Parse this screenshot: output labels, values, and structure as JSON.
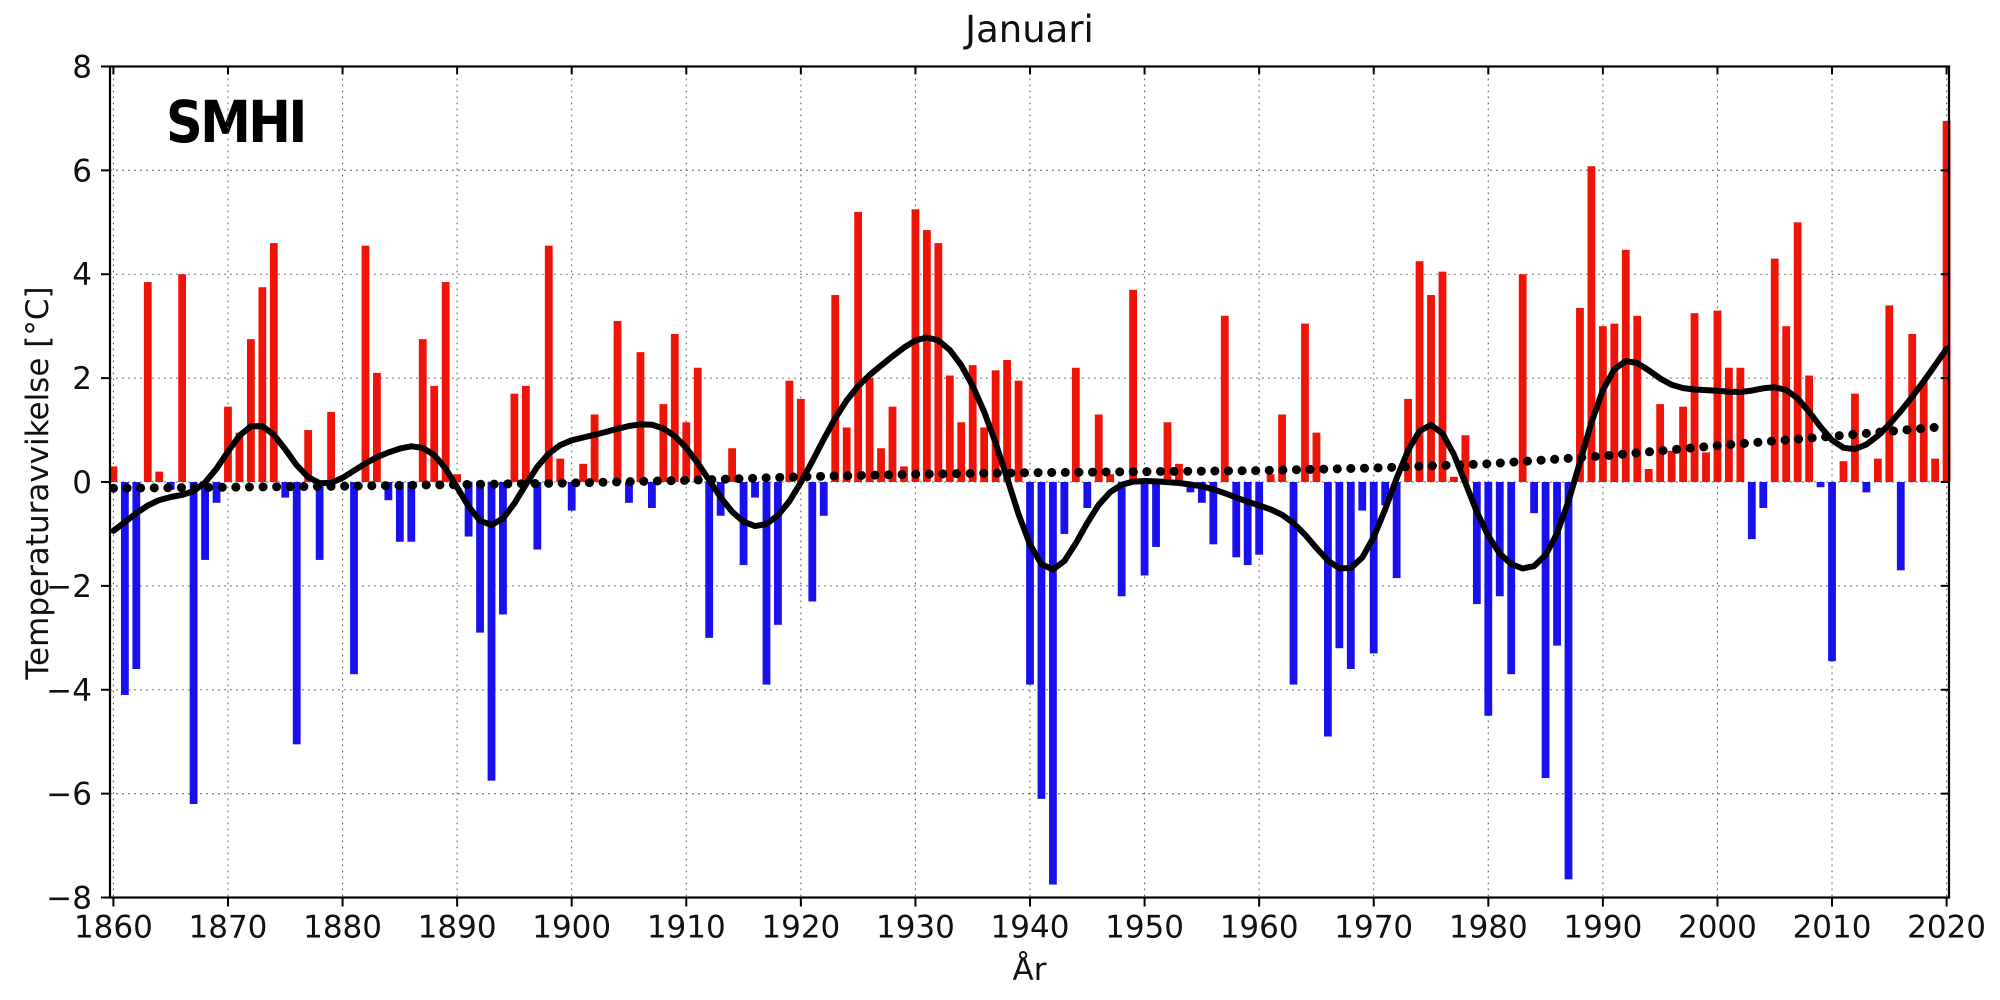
{
  "chart_data": {
    "type": "bar",
    "title": "Januari",
    "xlabel": "År",
    "ylabel": "Temperaturavvikelse [°C]",
    "logo_text": "SMHI",
    "ylim": [
      -8,
      8
    ],
    "ytick_step": 2,
    "xtick_step": 10,
    "grid": true,
    "legend_position": "none",
    "x_start": 1860,
    "x_end": 2020,
    "bar_color_positive": "#ee1508",
    "bar_color_negative": "#1a10ee",
    "ytick_labels": [
      "8",
      "6",
      "4",
      "2",
      "0",
      "−2",
      "−4",
      "−6",
      "−8"
    ],
    "xtick_labels": [
      "1860",
      "1870",
      "1880",
      "1890",
      "1900",
      "1910",
      "1920",
      "1930",
      "1940",
      "1950",
      "1960",
      "1970",
      "1980",
      "1990",
      "2000",
      "2010",
      "2020"
    ],
    "bar_values": [
      0.3,
      -4.1,
      -3.6,
      3.85,
      0.2,
      -0.15,
      4.0,
      -6.2,
      -1.5,
      -0.4,
      1.45,
      0.95,
      2.75,
      3.75,
      4.6,
      -0.3,
      -5.05,
      1.0,
      -1.5,
      1.35,
      0.0,
      -3.7,
      4.55,
      2.1,
      -0.35,
      -1.15,
      -1.15,
      2.75,
      1.85,
      3.85,
      0.15,
      -1.05,
      -2.9,
      -5.75,
      -2.55,
      1.7,
      1.85,
      -1.3,
      4.55,
      0.45,
      -0.55,
      0.35,
      1.3,
      0.0,
      3.1,
      -0.4,
      2.5,
      -0.5,
      1.5,
      2.85,
      1.15,
      2.2,
      -3.0,
      -0.65,
      0.65,
      -1.6,
      -0.3,
      -3.9,
      -2.75,
      1.95,
      1.6,
      -2.3,
      -0.65,
      3.6,
      1.05,
      5.2,
      2.0,
      0.65,
      1.45,
      0.3,
      5.25,
      4.85,
      4.6,
      2.05,
      1.15,
      2.25,
      1.05,
      2.15,
      2.35,
      1.95,
      -3.9,
      -6.1,
      -7.75,
      -1.0,
      2.2,
      -0.5,
      1.3,
      0.15,
      -2.2,
      3.7,
      -1.8,
      -1.25,
      1.15,
      0.35,
      -0.2,
      -0.4,
      -1.2,
      3.2,
      -1.45,
      -1.6,
      -1.4,
      0.15,
      1.3,
      -3.9,
      3.05,
      0.95,
      -4.9,
      -3.2,
      -3.6,
      -0.55,
      -3.3,
      -0.45,
      -1.85,
      1.6,
      4.25,
      3.6,
      4.05,
      0.1,
      0.9,
      -2.35,
      -4.5,
      -2.2,
      -3.7,
      4.0,
      -0.6,
      -5.7,
      -3.15,
      -7.65,
      3.35,
      6.08,
      3.0,
      3.05,
      4.47,
      3.2,
      0.25,
      1.5,
      0.6,
      1.45,
      3.25,
      0.57,
      3.3,
      2.2,
      2.2,
      -1.1,
      -0.5,
      4.3,
      3.0,
      5.0,
      2.05,
      -0.1,
      -3.45,
      0.4,
      1.7,
      -0.2,
      0.45,
      3.4,
      -1.7,
      2.85,
      1.95,
      0.45,
      6.95
    ],
    "smoothed_line": {
      "color": "#000000",
      "method": "gaussian",
      "sigma_years": 3.0,
      "stroke_width": 6
    },
    "trend_dotted": {
      "color": "#000000",
      "points": [
        [
          1860,
          -0.12
        ],
        [
          1870,
          -0.1
        ],
        [
          1880,
          -0.08
        ],
        [
          1890,
          -0.05
        ],
        [
          1900,
          -0.02
        ],
        [
          1910,
          0.03
        ],
        [
          1920,
          0.1
        ],
        [
          1930,
          0.15
        ],
        [
          1940,
          0.18
        ],
        [
          1950,
          0.2
        ],
        [
          1960,
          0.22
        ],
        [
          1970,
          0.27
        ],
        [
          1980,
          0.35
        ],
        [
          1990,
          0.5
        ],
        [
          2000,
          0.7
        ],
        [
          2010,
          0.88
        ],
        [
          2020,
          1.07
        ]
      ]
    }
  }
}
